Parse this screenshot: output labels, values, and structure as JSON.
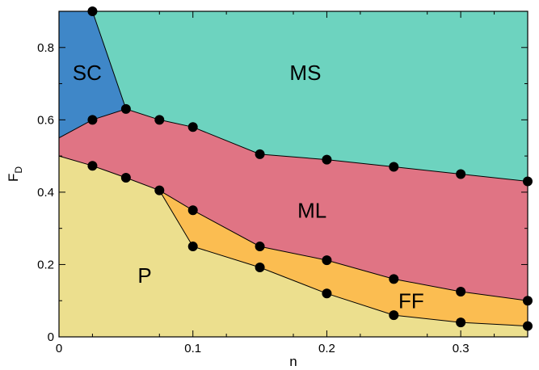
{
  "chart_data": {
    "type": "area",
    "title": "",
    "xlabel": "n",
    "ylabel": "F",
    "ylabel_subscript": "D",
    "xlim": [
      0,
      0.35
    ],
    "ylim": [
      0,
      0.9
    ],
    "xticks": [
      0,
      0.1,
      0.2,
      0.3
    ],
    "xtick_labels": [
      "0",
      "0.1",
      "0.2",
      "0.3"
    ],
    "yticks": [
      0,
      0.2,
      0.4,
      0.6,
      0.8
    ],
    "ytick_labels": [
      "0",
      "0.2",
      "0.4",
      "0.6",
      "0.8"
    ],
    "grid": false,
    "colors": {
      "SC": "#3f87c8",
      "MS": "#6dd3bf",
      "ML": "#e07484",
      "FF": "#fbbd51",
      "P": "#ecdf8e",
      "marker": "#000000",
      "boundary": "#000000"
    },
    "boundaries": [
      {
        "name": "P upper",
        "points": [
          [
            0,
            0.5
          ],
          [
            0.025,
            0.473
          ],
          [
            0.05,
            0.44
          ],
          [
            0.075,
            0.405
          ],
          [
            0.1,
            0.25
          ],
          [
            0.15,
            0.192
          ],
          [
            0.2,
            0.12
          ],
          [
            0.25,
            0.06
          ],
          [
            0.3,
            0.04
          ],
          [
            0.35,
            0.03
          ]
        ]
      },
      {
        "name": "FF upper",
        "points": [
          [
            0.075,
            0.405
          ],
          [
            0.1,
            0.35
          ],
          [
            0.15,
            0.25
          ],
          [
            0.2,
            0.212
          ],
          [
            0.25,
            0.16
          ],
          [
            0.3,
            0.125
          ],
          [
            0.35,
            0.1
          ]
        ]
      },
      {
        "name": "ML upper",
        "points": [
          [
            0,
            0.55
          ],
          [
            0.025,
            0.6
          ],
          [
            0.05,
            0.63
          ],
          [
            0.075,
            0.6
          ],
          [
            0.1,
            0.58
          ],
          [
            0.15,
            0.505
          ],
          [
            0.2,
            0.49
          ],
          [
            0.25,
            0.47
          ],
          [
            0.3,
            0.45
          ],
          [
            0.35,
            0.43
          ]
        ]
      },
      {
        "name": "SC right",
        "points": [
          [
            0.025,
            0.9
          ],
          [
            0.05,
            0.63
          ]
        ]
      }
    ],
    "markers": [
      [
        0.025,
        0.9
      ],
      [
        0.025,
        0.6
      ],
      [
        0.025,
        0.473
      ],
      [
        0.05,
        0.63
      ],
      [
        0.05,
        0.44
      ],
      [
        0.075,
        0.6
      ],
      [
        0.075,
        0.405
      ],
      [
        0.1,
        0.58
      ],
      [
        0.1,
        0.35
      ],
      [
        0.1,
        0.25
      ],
      [
        0.15,
        0.505
      ],
      [
        0.15,
        0.25
      ],
      [
        0.15,
        0.192
      ],
      [
        0.2,
        0.49
      ],
      [
        0.2,
        0.212
      ],
      [
        0.2,
        0.12
      ],
      [
        0.25,
        0.47
      ],
      [
        0.25,
        0.16
      ],
      [
        0.25,
        0.06
      ],
      [
        0.3,
        0.45
      ],
      [
        0.3,
        0.125
      ],
      [
        0.3,
        0.04
      ],
      [
        0.35,
        0.43
      ],
      [
        0.35,
        0.1
      ],
      [
        0.35,
        0.03
      ]
    ],
    "region_labels": [
      {
        "text": "SC",
        "x": 0.021,
        "y": 0.725
      },
      {
        "text": "MS",
        "x": 0.184,
        "y": 0.725
      },
      {
        "text": "ML",
        "x": 0.189,
        "y": 0.345
      },
      {
        "text": "P",
        "x": 0.064,
        "y": 0.165
      },
      {
        "text": "FF",
        "x": 0.263,
        "y": 0.095
      }
    ]
  }
}
